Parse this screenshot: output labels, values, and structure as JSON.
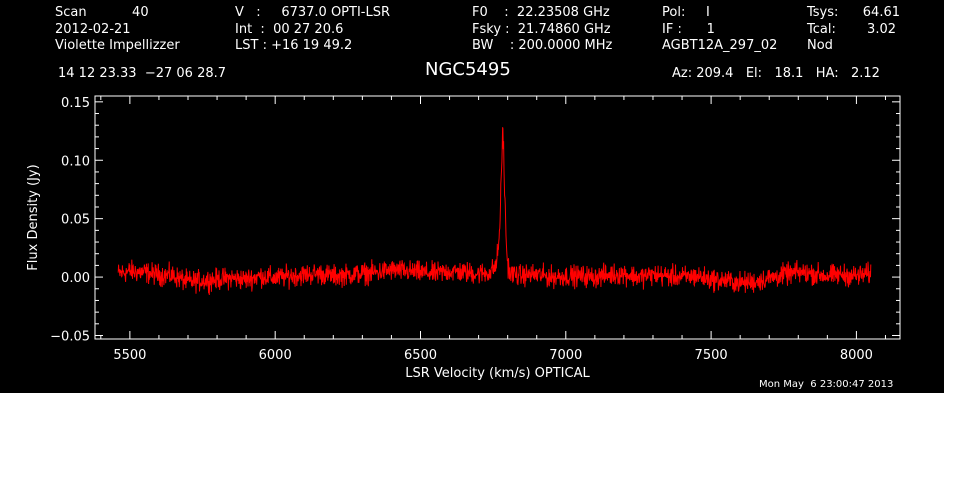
{
  "header": {
    "col1": [
      "Scan           40",
      "2012-02-21",
      "Violette Impellizzer"
    ],
    "col2": [
      "V   :     6737.0 OPTI-LSR",
      "Int  :  00 27 20.6",
      "LST : +16 19 49.2"
    ],
    "col3": [
      "F0    :  22.23508 GHz",
      "Fsky :  21.74860 GHz",
      "BW    : 200.0000 MHz"
    ],
    "col4": [
      "Pol:     I",
      "IF :      1",
      "AGBT12A_297_02"
    ],
    "col5": [
      "Tsys:",
      "Tcal:",
      "Nod"
    ],
    "col6": [
      "64.61",
      "3.02",
      ""
    ],
    "coords": "14 12 23.33  −27 06 28.7",
    "source": "NGC5495",
    "az_el_ha": "Az: 209.4   El:   18.1   HA:   2.12",
    "timestamp": "Mon May  6 23:00:47 2013"
  },
  "colors": {
    "background": "#000000",
    "axes": "#ffffff",
    "trace": "#ff0000"
  },
  "chart_data": {
    "type": "line",
    "xlabel": "LSR Velocity (km/s) OPTICAL",
    "ylabel": "Flux Density (Jy)",
    "xlim": [
      5380,
      8150
    ],
    "ylim": [
      -0.053,
      0.155
    ],
    "xticks": [
      5500,
      6000,
      6500,
      7000,
      7500,
      8000
    ],
    "xtick_labels": [
      "5500",
      "6000",
      "6500",
      "7000",
      "7500",
      "8000"
    ],
    "yticks": [
      -0.05,
      0.0,
      0.05,
      0.1,
      0.15
    ],
    "ytick_labels": [
      "−0.05",
      "0.00",
      "0.05",
      "0.10",
      "0.15"
    ],
    "series": [
      {
        "color": "#ff0000",
        "x": [
          5460,
          5500,
          5550,
          5600,
          5650,
          5700,
          5750,
          5800,
          5850,
          5900,
          5950,
          6000,
          6050,
          6100,
          6150,
          6200,
          6250,
          6300,
          6350,
          6400,
          6450,
          6500,
          6550,
          6600,
          6650,
          6700,
          6740,
          6760,
          6770,
          6775,
          6780,
          6783,
          6786,
          6790,
          6793,
          6796,
          6800,
          6805,
          6810,
          6820,
          6840,
          6860,
          6900,
          6950,
          7000,
          7050,
          7100,
          7150,
          7200,
          7250,
          7300,
          7350,
          7400,
          7450,
          7500,
          7550,
          7600,
          7650,
          7700,
          7750,
          7800,
          7850,
          7900,
          7950,
          8000,
          8050
        ],
        "y": [
          0.003,
          0.005,
          0.004,
          0.002,
          0.001,
          -0.004,
          -0.003,
          -0.002,
          -0.001,
          -0.002,
          0.001,
          -0.001,
          0.001,
          0.002,
          0.003,
          0.001,
          0.002,
          0.003,
          0.004,
          0.006,
          0.005,
          0.004,
          0.003,
          0.005,
          0.004,
          0.003,
          0.004,
          0.01,
          0.03,
          0.06,
          0.1,
          0.13,
          0.11,
          0.065,
          0.05,
          0.025,
          0.012,
          0.006,
          0.002,
          0.003,
          0.001,
          0.002,
          0.002,
          0.0,
          0.001,
          0.001,
          0.0,
          0.002,
          0.003,
          0.0,
          0.002,
          0.001,
          0.0,
          0.001,
          -0.002,
          -0.003,
          -0.005,
          -0.004,
          -0.001,
          0.002,
          0.004,
          0.003,
          0.001,
          0.002,
          0.001,
          0.003
        ]
      }
    ]
  }
}
